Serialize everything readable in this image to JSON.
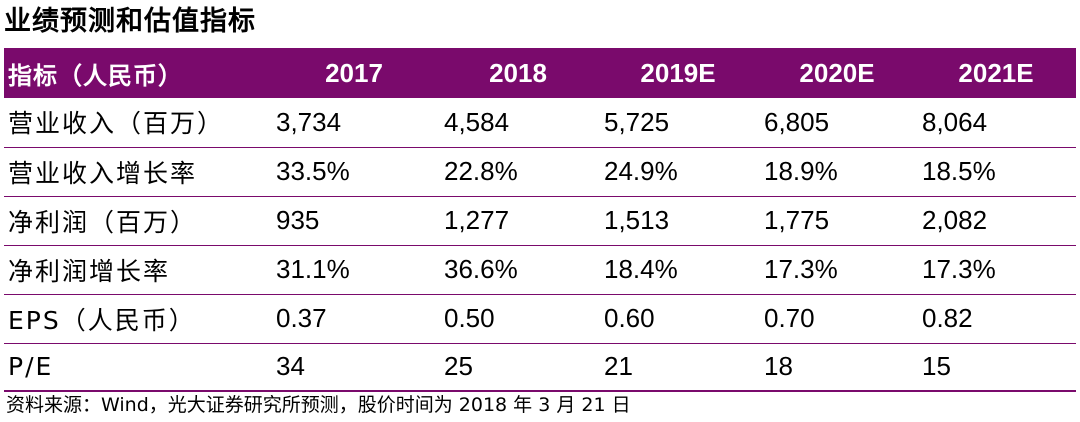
{
  "title": "业绩预测和估值指标",
  "table": {
    "header": [
      "指标（人民币）",
      "2017",
      "2018",
      "2019E",
      "2020E",
      "2021E"
    ],
    "rows": [
      {
        "label": "营业收入（百万）",
        "values": [
          "3,734",
          "4,584",
          "5,725",
          "6,805",
          "8,064"
        ]
      },
      {
        "label": "营业收入增长率",
        "values": [
          "33.5%",
          "22.8%",
          "24.9%",
          "18.9%",
          "18.5%"
        ]
      },
      {
        "label": "净利润（百万）",
        "values": [
          "935",
          "1,277",
          "1,513",
          "1,775",
          "2,082"
        ]
      },
      {
        "label": "净利润增长率",
        "values": [
          "31.1%",
          "36.6%",
          "18.4%",
          "17.3%",
          "17.3%"
        ]
      },
      {
        "label": "EPS（人民币）",
        "values": [
          "0.37",
          "0.50",
          "0.60",
          "0.70",
          "0.82"
        ]
      },
      {
        "label": "P/E",
        "values": [
          "34",
          "25",
          "21",
          "18",
          "15"
        ]
      }
    ]
  },
  "footnote": "资料来源：Wind，光大证券研究所预测，股价时间为 2018 年 3 月 21 日",
  "colors": {
    "header_bg": "#7a0a6c",
    "header_text": "#ffffff",
    "rule": "#7a0a6c"
  }
}
